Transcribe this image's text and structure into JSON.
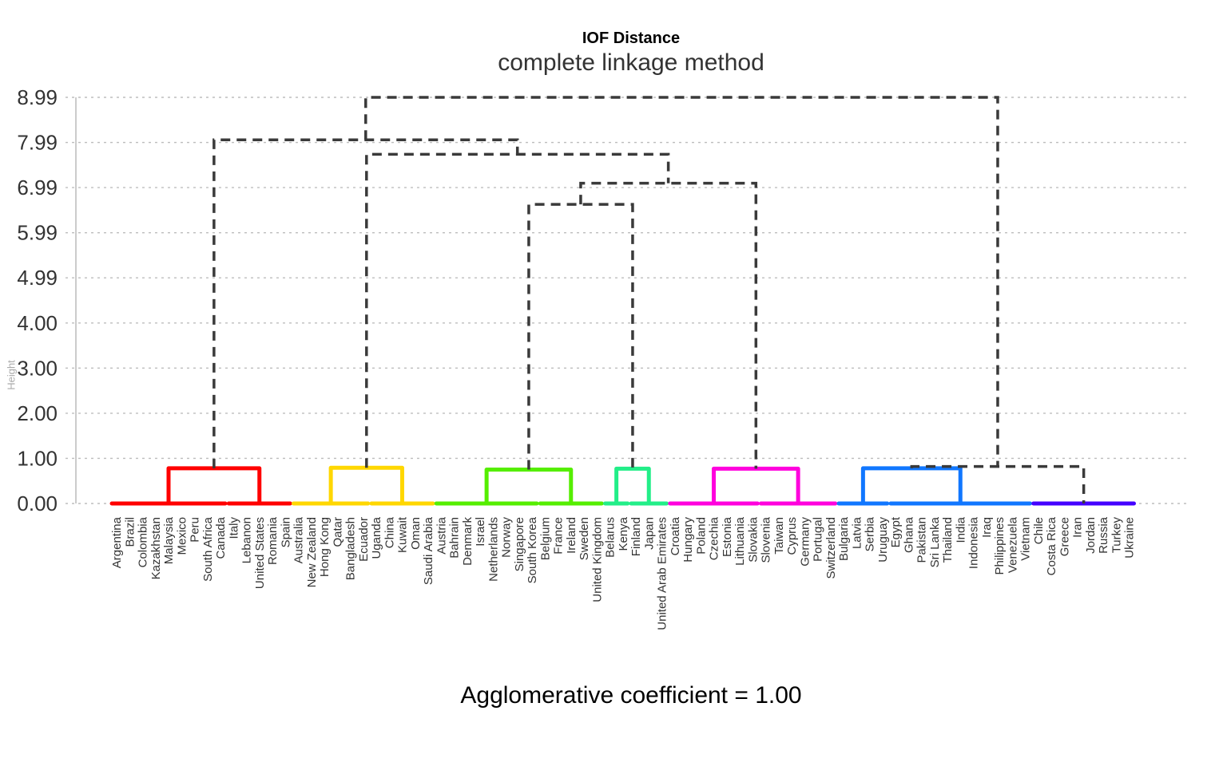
{
  "chart_data": {
    "type": "dendrogram",
    "title": "IOF Distance",
    "subtitle": "complete linkage method",
    "xlabel": "Agglomerative coefficient = 1.00",
    "ylabel": "Height",
    "yticks": [
      "0.00",
      "1.00",
      "2.00",
      "3.00",
      "4.00",
      "4.99",
      "5.99",
      "6.99",
      "7.99",
      "8.99"
    ],
    "ylim": [
      0,
      8.99
    ],
    "grid": "horizontal dotted",
    "leaves": [
      "Argentina",
      "Brazil",
      "Colombia",
      "Kazakhstan",
      "Malaysia",
      "Mexico",
      "Peru",
      "South Africa",
      "Canada",
      "Italy",
      "Lebanon",
      "United States",
      "Romania",
      "Spain",
      "Australia",
      "New Zealand",
      "Hong Kong",
      "Qatar",
      "Bangladesh",
      "Ecuador",
      "Uganda",
      "China",
      "Kuwait",
      "Oman",
      "Saudi Arabia",
      "Austria",
      "Bahrain",
      "Denmark",
      "Israel",
      "Netherlands",
      "Norway",
      "Singapore",
      "South Korea",
      "Belgium",
      "France",
      "Ireland",
      "Sweden",
      "United Kingdom",
      "Belarus",
      "Kenya",
      "Finland",
      "Japan",
      "United Arab Emirates",
      "Croatia",
      "Hungary",
      "Poland",
      "Czechia",
      "Estonia",
      "Lithuania",
      "Slovakia",
      "Slovenia",
      "Taiwan",
      "Cyprus",
      "Germany",
      "Portugal",
      "Switzerland",
      "Bulgaria",
      "Latvia",
      "Serbia",
      "Uruguay",
      "Egypt",
      "Ghana",
      "Pakistan",
      "Sri Lanka",
      "Thailand",
      "India",
      "Indonesia",
      "Iraq",
      "Philippines",
      "Venezuela",
      "Vietnam",
      "Chile",
      "Costa Rica",
      "Greece",
      "Iran",
      "Jordan",
      "Russia",
      "Turkey",
      "Ukraine"
    ],
    "clusters": [
      {
        "name": "1",
        "color": "#ff0000",
        "leaves": [
          0,
          13
        ]
      },
      {
        "name": "2",
        "color": "#ffd700",
        "leaves": [
          14,
          24
        ]
      },
      {
        "name": "3",
        "color": "#55ee00",
        "leaves": [
          25,
          37
        ]
      },
      {
        "name": "4",
        "color": "#22ee88",
        "leaves": [
          38,
          42
        ]
      },
      {
        "name": "5",
        "color": "#ff00dd",
        "leaves": [
          43,
          55
        ]
      },
      {
        "name": "6",
        "color": "#1177ff",
        "leaves": [
          56,
          70
        ]
      },
      {
        "name": "7",
        "color": "#4400ff",
        "leaves": [
          71,
          78
        ]
      }
    ],
    "merges": [
      {
        "dashed": false,
        "color": "#ff0000",
        "left": {
          "leaves": [
            0,
            8
          ],
          "h": 0
        },
        "right": {
          "leaves": [
            9,
            13
          ],
          "h": 0
        },
        "h": 0.78
      },
      {
        "dashed": false,
        "color": "#ffd700",
        "left": {
          "leaves": [
            14,
            19
          ],
          "h": 0
        },
        "right": {
          "leaves": [
            20,
            24
          ],
          "h": 0
        },
        "h": 0.79
      },
      {
        "dashed": false,
        "color": "#55ee00",
        "left": {
          "leaves": [
            25,
            32
          ],
          "h": 0
        },
        "right": {
          "leaves": [
            33,
            37
          ],
          "h": 0
        },
        "h": 0.75
      },
      {
        "dashed": false,
        "color": "#22ee88",
        "left": {
          "leaves": [
            38,
            39
          ],
          "h": 0
        },
        "right": {
          "leaves": [
            40,
            42
          ],
          "h": 0
        },
        "h": 0.77
      },
      {
        "dashed": false,
        "color": "#ff00dd",
        "left": {
          "leaves": [
            43,
            49
          ],
          "h": 0
        },
        "right": {
          "leaves": [
            50,
            55
          ],
          "h": 0
        },
        "h": 0.77
      },
      {
        "dashed": false,
        "color": "#1177ff",
        "left": {
          "leaves": [
            56,
            59
          ],
          "h": 0
        },
        "right": {
          "leaves": [
            60,
            70
          ],
          "h": 0
        },
        "h": 0.78
      },
      {
        "dashed": true,
        "left": {
          "leaves": [
            25,
            37
          ],
          "h": 0.75
        },
        "right": {
          "leaves": [
            38,
            42
          ],
          "h": 0.77
        },
        "h": 6.62
      },
      {
        "dashed": true,
        "left": {
          "leaves": [
            25,
            42
          ],
          "h": 6.62
        },
        "right": {
          "leaves": [
            43,
            55
          ],
          "h": 0.77
        },
        "h": 7.09
      },
      {
        "dashed": true,
        "left": {
          "leaves": [
            14,
            24
          ],
          "h": 0.79
        },
        "right": {
          "leaves": [
            25,
            55
          ],
          "h": 7.09
        },
        "h": 7.73
      },
      {
        "dashed": true,
        "left": {
          "leaves": [
            0,
            13
          ],
          "h": 0.78
        },
        "right": {
          "leaves": [
            14,
            55
          ],
          "h": 7.73
        },
        "h": 8.05
      },
      {
        "dashed": true,
        "left": {
          "leaves": [
            56,
            70
          ],
          "h": 0.78
        },
        "right": {
          "leaves": [
            71,
            78
          ],
          "h": 0
        },
        "h": 0.82
      },
      {
        "dashed": true,
        "left": {
          "leaves": [
            0,
            55
          ],
          "h": 8.05
        },
        "right": {
          "leaves": [
            56,
            78
          ],
          "h": 0.82
        },
        "h": 8.99
      }
    ]
  }
}
